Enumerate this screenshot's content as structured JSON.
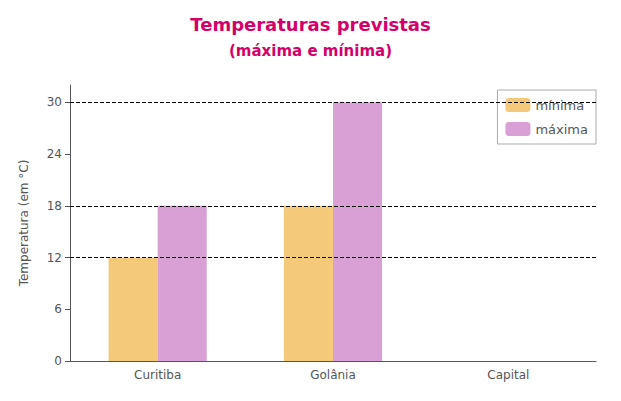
{
  "chart_data": {
    "type": "bar",
    "title": "Temperaturas previstas",
    "subtitle": "(máxima e mínima)",
    "categories": [
      "Curitiba",
      "Golânia",
      "Capital"
    ],
    "series": [
      {
        "name": "mínima",
        "color": "#F5C97A",
        "values": [
          12,
          18,
          null
        ]
      },
      {
        "name": "máxima",
        "color": "#D9A0D5",
        "values": [
          18,
          30,
          null
        ]
      }
    ],
    "hlines": [
      12,
      18,
      30
    ],
    "ylabel": "Temperatura (em °C)",
    "ylim": [
      0,
      32
    ],
    "yticks": [
      0,
      6,
      12,
      18,
      24,
      30
    ],
    "grid": false,
    "legend": "upper right"
  }
}
